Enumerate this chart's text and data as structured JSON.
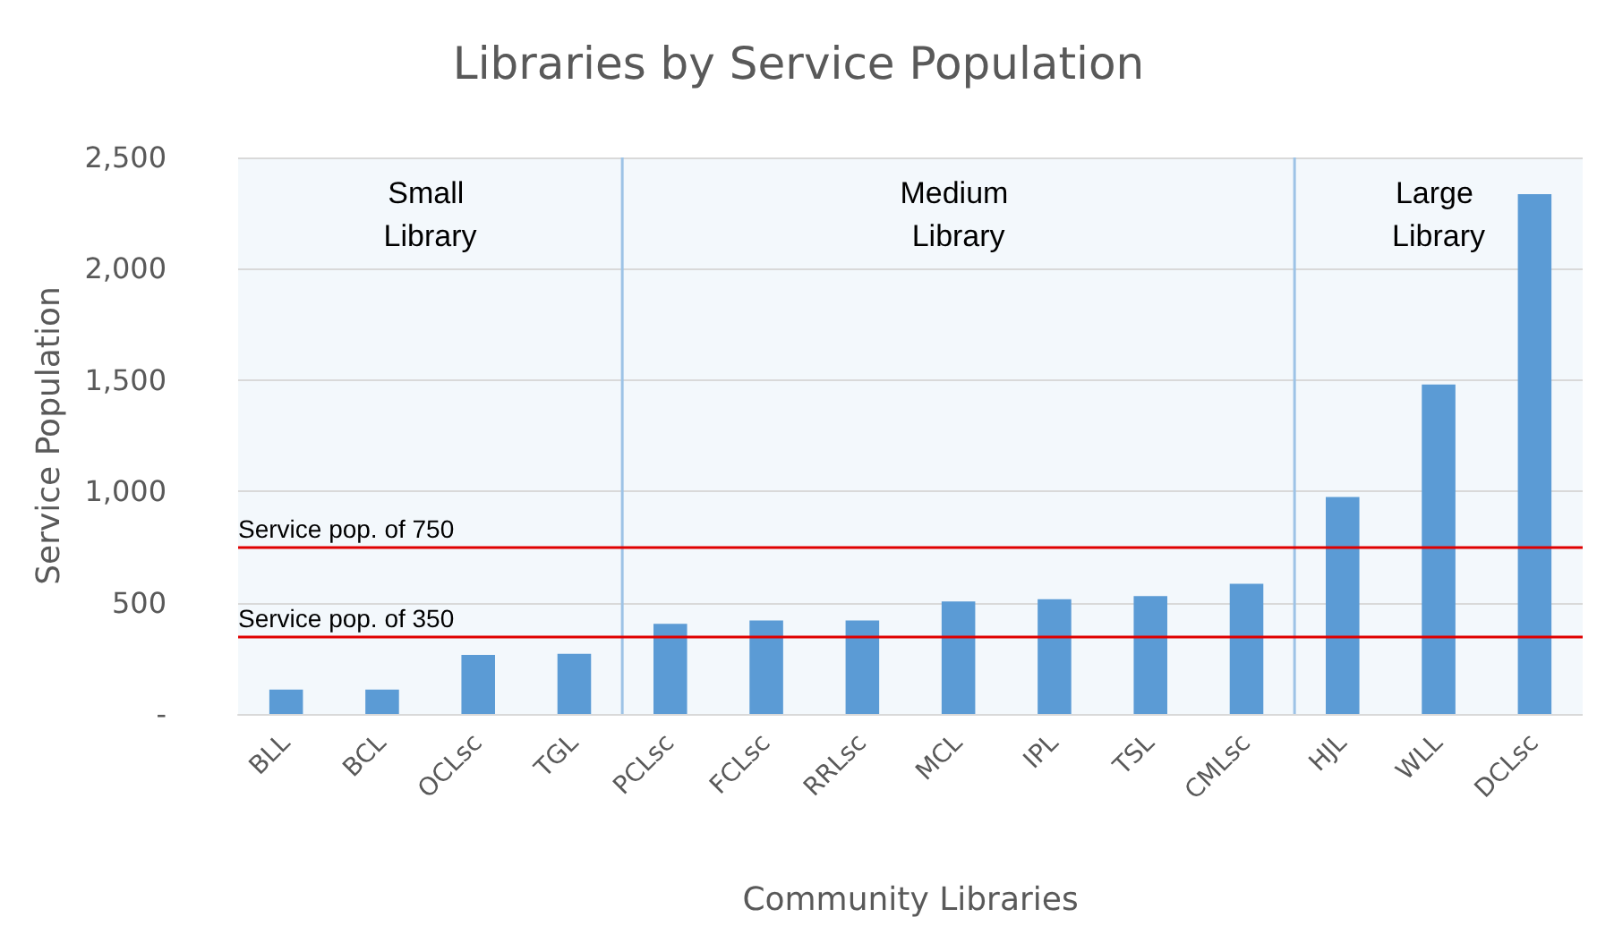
{
  "chart_data": {
    "type": "bar",
    "title": "Libraries by Service Population",
    "xlabel": "Community Libraries",
    "ylabel": "Service Population",
    "categories": [
      "BLL",
      "BCL",
      "OCLsc",
      "TGL",
      "PCLsc",
      "FCLsc",
      "RRLsc",
      "MCL",
      "IPL",
      "TSL",
      "CMLsc",
      "HJL",
      "WLL",
      "DCLsc"
    ],
    "values": [
      110,
      110,
      265,
      270,
      405,
      420,
      420,
      505,
      515,
      530,
      585,
      975,
      1480,
      2335
    ],
    "color": "#5b9bd5",
    "ylim": [
      0,
      2500
    ],
    "yticks": [
      {
        "value": 0,
        "label": "-"
      },
      {
        "value": 500,
        "label": "500"
      },
      {
        "value": 1000,
        "label": "1,000"
      },
      {
        "value": 1500,
        "label": "1,500"
      },
      {
        "value": 2000,
        "label": "2,000"
      },
      {
        "value": 2500,
        "label": "2,500"
      }
    ],
    "grid": "y",
    "ref_lines": [
      {
        "axis": "y",
        "value": 750,
        "label": "Service pop. of 750",
        "color": "#e00000"
      },
      {
        "axis": "y",
        "value": 350,
        "label": "Service pop. of 350",
        "color": "#e00000"
      }
    ],
    "bands": [
      {
        "axis": "x",
        "from": "BLL",
        "to": "TGL",
        "label": "Small Library",
        "color": "#9dc3e6"
      },
      {
        "axis": "x",
        "from": "PCLsc",
        "to": "CMLsc",
        "label": "Medium Library",
        "color": "#9dc3e6"
      },
      {
        "axis": "x",
        "from": "HJL",
        "to": "DCLsc",
        "label": "Large Library",
        "color": "#9dc3e6"
      }
    ]
  }
}
